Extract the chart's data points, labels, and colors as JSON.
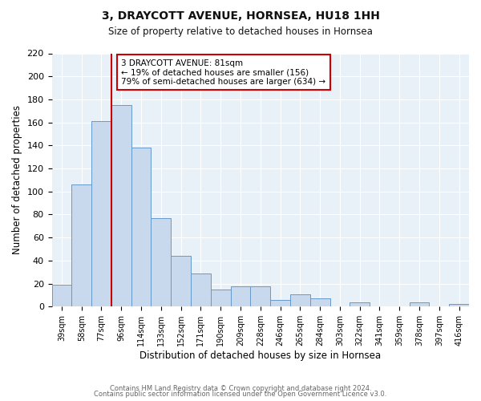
{
  "title": "3, DRAYCOTT AVENUE, HORNSEA, HU18 1HH",
  "subtitle": "Size of property relative to detached houses in Hornsea",
  "xlabel": "Distribution of detached houses by size in Hornsea",
  "ylabel": "Number of detached properties",
  "bar_labels": [
    "39sqm",
    "58sqm",
    "77sqm",
    "96sqm",
    "114sqm",
    "133sqm",
    "152sqm",
    "171sqm",
    "190sqm",
    "209sqm",
    "228sqm",
    "246sqm",
    "265sqm",
    "284sqm",
    "303sqm",
    "322sqm",
    "341sqm",
    "359sqm",
    "378sqm",
    "397sqm",
    "416sqm"
  ],
  "bar_values": [
    19,
    106,
    161,
    175,
    138,
    77,
    44,
    29,
    15,
    18,
    18,
    6,
    11,
    7,
    0,
    4,
    0,
    0,
    4,
    0,
    2
  ],
  "bar_color": "#c8d9ee",
  "bar_edge_color": "#6699cc",
  "vline_color": "#cc0000",
  "vline_x_index": 2,
  "ylim": [
    0,
    220
  ],
  "yticks": [
    0,
    20,
    40,
    60,
    80,
    100,
    120,
    140,
    160,
    180,
    200,
    220
  ],
  "annotation_title": "3 DRAYCOTT AVENUE: 81sqm",
  "annotation_line1": "← 19% of detached houses are smaller (156)",
  "annotation_line2": "79% of semi-detached houses are larger (634) →",
  "annotation_box_color": "#ffffff",
  "annotation_box_edge": "#cc0000",
  "footer1": "Contains HM Land Registry data © Crown copyright and database right 2024.",
  "footer2": "Contains public sector information licensed under the Open Government Licence v3.0.",
  "background_color": "#ffffff",
  "plot_bg_color": "#e8f0f8",
  "grid_color": "#ffffff"
}
